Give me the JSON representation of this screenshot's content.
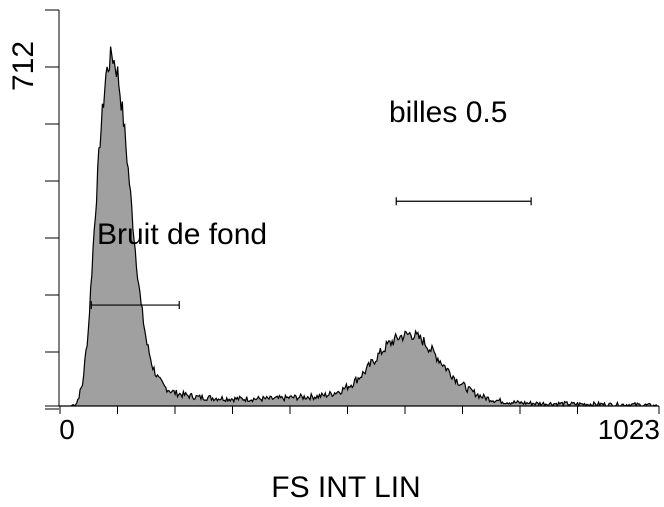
{
  "chart_data": {
    "type": "area",
    "title": "",
    "xlabel": "FS INT LIN",
    "ylabel": "",
    "xlim": [
      0,
      1023
    ],
    "ylim": [
      0,
      712
    ],
    "x_tick_labels": [
      "0",
      "1023"
    ],
    "y_tick_labels": [
      "712"
    ],
    "fill_color": "#a0a0a0",
    "line_color": "#000000",
    "grid": false,
    "legend": "none",
    "series": [
      {
        "x": [
          0,
          20,
          30,
          40,
          50,
          60,
          70,
          80,
          90,
          100,
          110,
          120,
          130,
          140,
          150,
          160,
          170,
          180,
          190,
          200,
          210,
          220,
          230,
          240,
          250,
          260,
          280,
          300,
          320,
          340,
          360,
          380,
          400,
          420,
          440,
          460,
          480,
          500,
          520,
          540,
          560,
          580,
          600,
          620,
          640,
          660,
          680,
          700,
          720,
          740,
          760,
          780,
          800,
          820,
          840,
          860,
          880,
          900,
          920,
          940,
          960,
          980,
          1000,
          1023
        ],
        "values": [
          0,
          0,
          6,
          45,
          160,
          370,
          560,
          695,
          740,
          700,
          600,
          470,
          330,
          210,
          130,
          82,
          55,
          40,
          32,
          27,
          24,
          22,
          20,
          18,
          18,
          17,
          16,
          15,
          15,
          15,
          15,
          16,
          18,
          19,
          20,
          24,
          32,
          47,
          70,
          100,
          128,
          145,
          152,
          138,
          110,
          80,
          52,
          33,
          20,
          13,
          9,
          7,
          6,
          5,
          5,
          5,
          4,
          4,
          4,
          3,
          3,
          3,
          2,
          0
        ]
      }
    ],
    "annotations": [
      {
        "text": "Bruit de fond",
        "gate_x": [
          55,
          205
        ],
        "gate_y": 212
      },
      {
        "text": "billes 0.5",
        "gate_x": [
          575,
          805
        ],
        "gate_y": 430
      }
    ]
  }
}
